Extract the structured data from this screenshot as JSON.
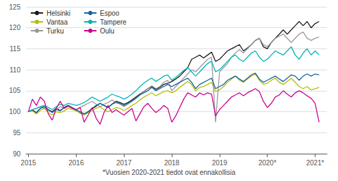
{
  "chart_data": {
    "type": "line",
    "footnote": "*Vuosien 2020-2021 tiedot ovat ennakollisia",
    "x": [
      2015,
      2015.0833333333333,
      2015.1666666666667,
      2015.25,
      2015.3333333333333,
      2015.4166666666667,
      2015.5,
      2015.5833333333333,
      2015.6666666666667,
      2015.75,
      2015.8333333333333,
      2015.9166666666667,
      2016,
      2016.0833333333333,
      2016.1666666666667,
      2016.25,
      2016.3333333333333,
      2016.4166666666667,
      2016.5,
      2016.5833333333333,
      2016.6666666666667,
      2016.75,
      2016.8333333333333,
      2016.9166666666667,
      2017,
      2017.0833333333333,
      2017.1666666666667,
      2017.25,
      2017.3333333333333,
      2017.4166666666667,
      2017.5,
      2017.5833333333333,
      2017.6666666666667,
      2017.75,
      2017.8333333333333,
      2017.9166666666667,
      2018,
      2018.0833333333333,
      2018.1666666666667,
      2018.25,
      2018.3333333333333,
      2018.4166666666667,
      2018.5,
      2018.5833333333333,
      2018.6666666666667,
      2018.75,
      2018.8333333333333,
      2018.9166666666667,
      2019,
      2019.0833333333333,
      2019.1666666666667,
      2019.25,
      2019.3333333333333,
      2019.4166666666667,
      2019.5,
      2019.5833333333333,
      2019.6666666666667,
      2019.75,
      2019.8333333333333,
      2019.9166666666667,
      2020,
      2020.0833333333333,
      2020.1666666666667,
      2020.25,
      2020.3333333333333,
      2020.4166666666667,
      2020.5,
      2020.5833333333333,
      2020.6666666666667,
      2020.75,
      2020.8333333333333,
      2020.9166666666667,
      2021,
      2021.0833333333333
    ],
    "xlim": [
      2014.95,
      2021.25
    ],
    "xticks": [
      2015,
      2016,
      2017,
      2018,
      2019,
      {
        "value": 2020,
        "label": "2020*"
      },
      {
        "value": 2021,
        "label": "2021*"
      }
    ],
    "ylim": [
      90,
      125
    ],
    "yticks": [
      90,
      95,
      100,
      105,
      110,
      115,
      120,
      125
    ],
    "grid": true,
    "legend": "upper left",
    "series": [
      {
        "name": "Helsinki",
        "color": "#1a1a1a",
        "values": [
          100.0,
          100.4,
          99.7,
          100.8,
          101.2,
          100.5,
          100.0,
          100.8,
          100.3,
          101.0,
          101.5,
          100.9,
          100.3,
          99.7,
          99.3,
          100.0,
          100.7,
          101.3,
          102.0,
          101.5,
          101.0,
          101.8,
          102.5,
          102.2,
          101.8,
          102.2,
          102.8,
          103.5,
          104.2,
          104.8,
          105.5,
          106.0,
          105.3,
          105.8,
          106.5,
          106.8,
          107.2,
          107.8,
          108.5,
          109.5,
          110.5,
          112.5,
          113.0,
          113.5,
          112.8,
          113.5,
          114.2,
          112.0,
          112.5,
          113.5,
          114.5,
          115.0,
          115.5,
          116.0,
          114.5,
          115.2,
          116.0,
          117.0,
          117.5,
          115.5,
          115.0,
          116.5,
          117.5,
          118.5,
          119.5,
          118.5,
          119.5,
          120.5,
          121.5,
          120.5,
          121.5,
          120.0,
          121.0,
          121.5
        ]
      },
      {
        "name": "Vantaa",
        "color": "#b5bd00",
        "values": [
          100.0,
          100.2,
          99.5,
          100.3,
          100.8,
          99.8,
          99.2,
          100.0,
          99.8,
          100.2,
          100.8,
          100.5,
          100.2,
          99.8,
          99.3,
          99.7,
          100.3,
          100.8,
          101.2,
          100.5,
          100.0,
          100.5,
          101.0,
          100.8,
          100.3,
          100.8,
          101.5,
          102.0,
          102.8,
          103.5,
          104.0,
          104.5,
          103.8,
          104.3,
          104.8,
          105.0,
          104.5,
          105.0,
          105.8,
          106.5,
          107.2,
          106.5,
          105.0,
          105.8,
          106.0,
          106.5,
          107.0,
          104.8,
          105.2,
          106.0,
          107.0,
          107.8,
          108.5,
          107.5,
          107.0,
          107.8,
          108.5,
          109.0,
          107.5,
          106.5,
          106.8,
          107.5,
          108.0,
          107.0,
          106.5,
          107.2,
          108.0,
          107.0,
          106.0,
          105.5,
          106.0,
          105.2,
          105.5,
          105.8
        ]
      },
      {
        "name": "Turku",
        "color": "#999999",
        "values": [
          100.0,
          100.5,
          100.8,
          101.2,
          100.8,
          100.3,
          99.8,
          100.5,
          101.2,
          100.8,
          101.2,
          100.8,
          100.5,
          101.0,
          101.5,
          102.0,
          102.5,
          101.8,
          101.2,
          101.8,
          102.2,
          102.8,
          102.2,
          101.8,
          101.2,
          101.8,
          102.5,
          103.2,
          104.0,
          104.8,
          105.5,
          106.2,
          105.5,
          106.0,
          107.0,
          107.5,
          105.0,
          106.0,
          107.0,
          108.0,
          109.0,
          110.0,
          109.5,
          110.5,
          111.5,
          112.5,
          113.0,
          97.5,
          109.5,
          110.5,
          111.5,
          113.0,
          114.0,
          114.8,
          114.0,
          115.0,
          116.0,
          117.0,
          117.5,
          116.0,
          115.5,
          116.5,
          117.5,
          118.0,
          118.5,
          117.5,
          116.5,
          117.5,
          118.5,
          119.0,
          117.5,
          117.0,
          117.5,
          117.8
        ]
      },
      {
        "name": "Espoo",
        "color": "#1464a0",
        "values": [
          100.0,
          100.5,
          99.8,
          100.8,
          101.2,
          100.5,
          99.8,
          100.5,
          100.2,
          101.0,
          101.5,
          101.0,
          100.5,
          100.0,
          99.5,
          100.0,
          100.8,
          101.5,
          102.0,
          101.5,
          101.0,
          101.8,
          102.2,
          102.0,
          101.5,
          102.0,
          102.5,
          103.2,
          104.0,
          104.5,
          105.0,
          105.8,
          105.0,
          105.5,
          106.0,
          106.5,
          106.0,
          106.5,
          107.0,
          107.5,
          108.0,
          107.0,
          105.5,
          106.5,
          107.0,
          107.5,
          108.0,
          105.5,
          106.0,
          106.5,
          107.5,
          108.0,
          108.5,
          107.8,
          107.2,
          108.0,
          108.8,
          109.2,
          107.8,
          107.0,
          107.5,
          108.0,
          108.5,
          107.8,
          107.2,
          108.0,
          108.8,
          108.5,
          107.5,
          108.5,
          109.0,
          108.5,
          109.0,
          108.8
        ]
      },
      {
        "name": "Tampere",
        "color": "#00b4b4",
        "values": [
          100.0,
          100.5,
          100.8,
          101.2,
          101.5,
          101.0,
          100.5,
          101.2,
          101.8,
          101.5,
          102.0,
          101.8,
          101.5,
          101.8,
          102.2,
          102.8,
          103.5,
          103.0,
          102.5,
          103.0,
          103.5,
          104.2,
          103.8,
          103.5,
          103.0,
          103.5,
          104.2,
          105.0,
          106.0,
          106.8,
          107.5,
          108.0,
          107.2,
          107.8,
          108.5,
          108.8,
          107.5,
          108.2,
          109.0,
          109.8,
          110.5,
          109.5,
          108.5,
          109.5,
          110.5,
          111.5,
          112.0,
          109.5,
          110.0,
          111.0,
          112.0,
          113.0,
          113.5,
          112.5,
          112.0,
          113.0,
          114.0,
          114.5,
          113.0,
          112.0,
          112.5,
          113.5,
          114.5,
          114.0,
          113.5,
          114.5,
          115.5,
          113.5,
          112.5,
          114.0,
          115.0,
          113.5,
          114.5,
          113.5
        ]
      },
      {
        "name": "Oulu",
        "color": "#c8008c",
        "values": [
          100.0,
          103.0,
          101.5,
          103.5,
          102.5,
          99.5,
          98.0,
          100.8,
          102.5,
          100.8,
          101.5,
          100.8,
          100.5,
          101.0,
          97.5,
          99.2,
          101.0,
          98.5,
          97.0,
          99.8,
          101.5,
          99.8,
          100.5,
          99.8,
          99.2,
          100.0,
          100.8,
          97.8,
          99.5,
          101.2,
          102.0,
          100.8,
          99.8,
          100.5,
          101.5,
          100.8,
          97.5,
          99.0,
          101.0,
          103.0,
          104.5,
          104.0,
          103.5,
          104.5,
          104.0,
          104.5,
          104.2,
          99.0,
          100.5,
          101.5,
          102.5,
          103.5,
          104.0,
          104.5,
          103.8,
          104.5,
          105.0,
          105.5,
          104.8,
          102.5,
          101.0,
          102.0,
          103.5,
          104.0,
          105.0,
          104.2,
          103.5,
          104.5,
          105.0,
          104.5,
          103.8,
          103.2,
          102.0,
          97.5
        ]
      }
    ]
  }
}
